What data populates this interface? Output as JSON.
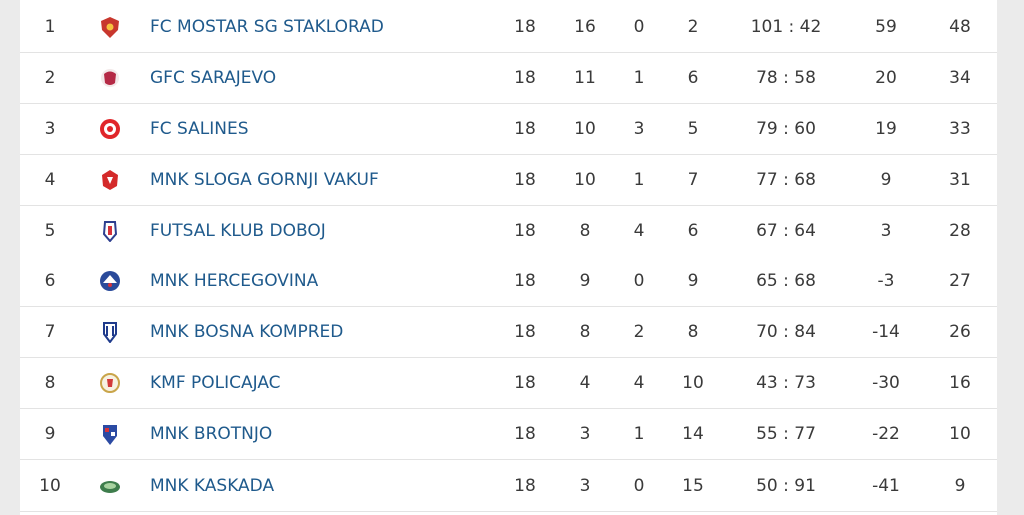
{
  "standings": {
    "rows": [
      {
        "rank": "1",
        "team": "FC MOSTAR SG STAKLORAD",
        "logo_icon": "fc-mostar-crest-icon",
        "played": "18",
        "won": "16",
        "drawn": "0",
        "lost": "2",
        "goals": "101 : 42",
        "diff": "59",
        "points": "48",
        "logo_color": "#c8372d"
      },
      {
        "rank": "2",
        "team": "GFC SARAJEVO",
        "logo_icon": "gfc-sarajevo-crest-icon",
        "played": "18",
        "won": "11",
        "drawn": "1",
        "lost": "6",
        "goals": "78 : 58",
        "diff": "20",
        "points": "34",
        "logo_color": "#b52a46"
      },
      {
        "rank": "3",
        "team": "FC SALINES",
        "logo_icon": "fc-salines-crest-icon",
        "played": "18",
        "won": "10",
        "drawn": "3",
        "lost": "5",
        "goals": "79 : 60",
        "diff": "19",
        "points": "33",
        "logo_color": "#e0262a"
      },
      {
        "rank": "4",
        "team": "MNK SLOGA GORNJI VAKUF",
        "logo_icon": "mnk-sloga-crest-icon",
        "played": "18",
        "won": "10",
        "drawn": "1",
        "lost": "7",
        "goals": "77 : 68",
        "diff": "9",
        "points": "31",
        "logo_color": "#d42a2a"
      },
      {
        "rank": "5",
        "team": "FUTSAL KLUB DOBOJ",
        "logo_icon": "fk-doboj-crest-icon",
        "played": "18",
        "won": "8",
        "drawn": "4",
        "lost": "6",
        "goals": "67 : 64",
        "diff": "3",
        "points": "28",
        "logo_color": "#2e3f8f"
      },
      {
        "rank": "6",
        "team": "MNK HERCEGOVINA",
        "logo_icon": "mnk-hercegovina-crest-icon",
        "played": "18",
        "won": "9",
        "drawn": "0",
        "lost": "9",
        "goals": "65 : 68",
        "diff": "-3",
        "points": "27",
        "logo_color": "#2a4a9a"
      },
      {
        "rank": "7",
        "team": "MNK BOSNA KOMPRED",
        "logo_icon": "mnk-bosna-crest-icon",
        "played": "18",
        "won": "8",
        "drawn": "2",
        "lost": "8",
        "goals": "70 : 84",
        "diff": "-14",
        "points": "26",
        "logo_color": "#1f3b8c"
      },
      {
        "rank": "8",
        "team": "KMF POLICAJAC",
        "logo_icon": "kmf-policajac-crest-icon",
        "played": "18",
        "won": "4",
        "drawn": "4",
        "lost": "10",
        "goals": "43 : 73",
        "diff": "-30",
        "points": "16",
        "logo_color": "#c9a54a"
      },
      {
        "rank": "9",
        "team": "MNK BROTNJO",
        "logo_icon": "mnk-brotnjo-crest-icon",
        "played": "18",
        "won": "3",
        "drawn": "1",
        "lost": "14",
        "goals": "55 : 77",
        "diff": "-22",
        "points": "10",
        "logo_color": "#2b4aa3"
      },
      {
        "rank": "10",
        "team": "MNK KASKADA",
        "logo_icon": "mnk-kaskada-crest-icon",
        "played": "18",
        "won": "3",
        "drawn": "0",
        "lost": "15",
        "goals": "50 : 91",
        "diff": "-41",
        "points": "9",
        "logo_color": "#3e7d4c"
      }
    ]
  },
  "colors": {
    "team_link": "#1f5a8c",
    "text": "#3a3a3a",
    "row_border": "#e3e3e3",
    "page_bg": "#ebebeb"
  }
}
